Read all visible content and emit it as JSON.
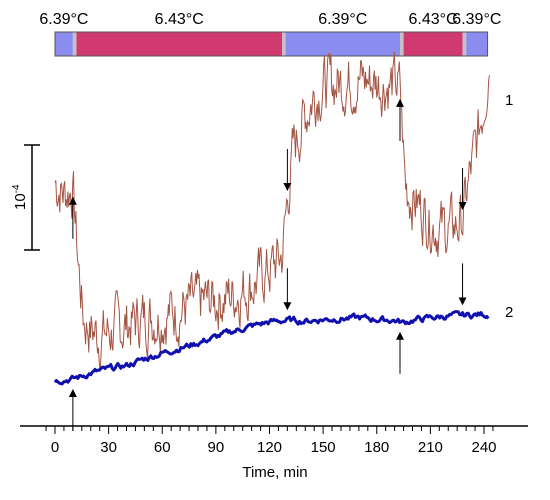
{
  "chart_data": {
    "type": "line",
    "xlabel": "Time, min",
    "xlim": [
      -5,
      248
    ],
    "x_ticks": [
      0,
      30,
      60,
      90,
      120,
      150,
      180,
      210,
      240
    ],
    "scale_bar_label": "10",
    "scale_bar_exponent": "-4",
    "temperature_protocol": [
      {
        "label": "6.39°C",
        "x_start": 0,
        "x_end": 10,
        "color": "#8a8cf0"
      },
      {
        "label": "6.43°C",
        "x_start": 12,
        "x_end": 127,
        "color": "#d03a6e"
      },
      {
        "label": "6.39°C",
        "x_start": 129,
        "x_end": 193,
        "color": "#8a8cf0"
      },
      {
        "label": "6.43°C",
        "x_start": 195,
        "x_end": 228,
        "color": "#d03a6e"
      },
      {
        "label": "6.39°C",
        "x_start": 230,
        "x_end": 242,
        "color": "#8a8cf0"
      }
    ],
    "series": [
      {
        "name": "1",
        "color": "#c0504d",
        "x": [
          0,
          5,
          10,
          13,
          16,
          20,
          25,
          30,
          40,
          50,
          60,
          70,
          80,
          90,
          100,
          110,
          120,
          127,
          130,
          133,
          136,
          140,
          145,
          150,
          160,
          170,
          180,
          190,
          193,
          196,
          200,
          205,
          210,
          215,
          220,
          225,
          228,
          232,
          236,
          240,
          243
        ],
        "values": [
          0.0,
          -0.12,
          -0.05,
          -0.85,
          -1.45,
          -1.55,
          -1.62,
          -1.58,
          -1.5,
          -1.43,
          -1.4,
          -1.34,
          -1.28,
          -1.24,
          -1.18,
          -1.08,
          -0.92,
          -0.78,
          -0.2,
          0.3,
          0.5,
          0.72,
          0.92,
          1.02,
          1.05,
          1.08,
          1.05,
          1.02,
          0.98,
          -0.05,
          -0.15,
          -0.28,
          -0.4,
          -0.48,
          -0.5,
          -0.45,
          -0.4,
          0.05,
          0.4,
          0.85,
          1.3
        ]
      },
      {
        "name": "2",
        "color": "#1010b0",
        "x": [
          0,
          10,
          20,
          30,
          40,
          50,
          60,
          70,
          80,
          90,
          100,
          110,
          120,
          130,
          140,
          150,
          160,
          170,
          180,
          190,
          195,
          200,
          210,
          220,
          230,
          240,
          243
        ],
        "values": [
          -0.15,
          -0.12,
          0.02,
          0.12,
          0.2,
          0.36,
          0.5,
          0.62,
          0.74,
          0.88,
          1.02,
          1.14,
          1.24,
          1.28,
          1.26,
          1.3,
          1.32,
          1.34,
          1.3,
          1.28,
          1.22,
          1.28,
          1.34,
          1.38,
          1.4,
          1.42,
          1.4
        ]
      }
    ],
    "arrows": [
      {
        "x": 10,
        "series": "1",
        "direction": "up"
      },
      {
        "x": 130,
        "series": "1",
        "direction": "down"
      },
      {
        "x": 193,
        "series": "1",
        "direction": "up"
      },
      {
        "x": 228,
        "series": "1",
        "direction": "down"
      },
      {
        "x": 10,
        "series": "2",
        "direction": "up"
      },
      {
        "x": 130,
        "series": "2",
        "direction": "down"
      },
      {
        "x": 193,
        "series": "2",
        "direction": "up"
      },
      {
        "x": 228,
        "series": "2",
        "direction": "down"
      }
    ]
  }
}
